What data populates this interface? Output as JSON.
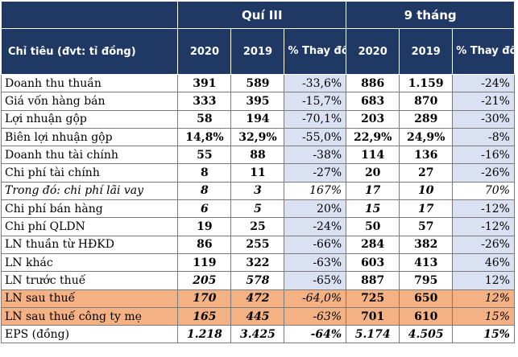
{
  "header": {
    "group_q3": "Quí III",
    "group_9m": "9 tháng",
    "label_col": "Chỉ tiêu (đvt: tỉ đồng)",
    "q3_2020": "2020",
    "q3_2019": "2019",
    "q3_change": "% Thay đổi",
    "m9_2020": "2020",
    "m9_2019": "2019",
    "m9_change": "% Thay đổi"
  },
  "rows": [
    {
      "label": "Doanh thu thuần",
      "q3_2020": "391",
      "q3_2019": "589",
      "q3_change": "-33,6%",
      "m9_2020": "886",
      "m9_2019": "1.159",
      "m9_change": "-24%"
    },
    {
      "label": "Giá vốn hàng bán",
      "q3_2020": "333",
      "q3_2019": "395",
      "q3_change": "-15,7%",
      "m9_2020": "683",
      "m9_2019": "870",
      "m9_change": "-21%"
    },
    {
      "label": "Lợi nhuận gộp",
      "q3_2020": "58",
      "q3_2019": "194",
      "q3_change": "-70,1%",
      "m9_2020": "203",
      "m9_2019": "289",
      "m9_change": "-30%"
    },
    {
      "label": "Biên lợi nhuận gộp",
      "q3_2020": "14,8%",
      "q3_2019": "32,9%",
      "q3_change": "-55,0%",
      "m9_2020": "22,9%",
      "m9_2019": "24,9%",
      "m9_change": "-8%"
    },
    {
      "label": "Doanh thu tài chính",
      "q3_2020": "55",
      "q3_2019": "88",
      "q3_change": "-38%",
      "m9_2020": "114",
      "m9_2019": "136",
      "m9_change": "-16%"
    },
    {
      "label": "Chi phí tài chính",
      "q3_2020": "8",
      "q3_2019": "11",
      "q3_change": "-27%",
      "m9_2020": "20",
      "m9_2019": "27",
      "m9_change": "-26%"
    },
    {
      "label": "Trong đó: chi phí lãi vay",
      "q3_2020": "8",
      "q3_2019": "3",
      "q3_change": "167%",
      "m9_2020": "17",
      "m9_2019": "10",
      "m9_change": "70%"
    },
    {
      "label": "Chi phí bán hàng",
      "q3_2020": "6",
      "q3_2019": "5",
      "q3_change": "20%",
      "m9_2020": "15",
      "m9_2019": "17",
      "m9_change": "-12%"
    },
    {
      "label": "Chi phí QLDN",
      "q3_2020": "19",
      "q3_2019": "25",
      "q3_change": "-24%",
      "m9_2020": "50",
      "m9_2019": "57",
      "m9_change": "-12%"
    },
    {
      "label": "LN thuần từ HĐKD",
      "q3_2020": "86",
      "q3_2019": "255",
      "q3_change": "-66%",
      "m9_2020": "284",
      "m9_2019": "382",
      "m9_change": "-26%"
    },
    {
      "label": "LN khác",
      "q3_2020": "119",
      "q3_2019": "322",
      "q3_change": "-63%",
      "m9_2020": "603",
      "m9_2019": "413",
      "m9_change": "46%"
    },
    {
      "label": "LN trước thuế",
      "q3_2020": "205",
      "q3_2019": "578",
      "q3_change": "-65%",
      "m9_2020": "887",
      "m9_2019": "795",
      "m9_change": "12%"
    },
    {
      "label": "LN sau thuế",
      "q3_2020": "170",
      "q3_2019": "472",
      "q3_change": "-64,0%",
      "m9_2020": "725",
      "m9_2019": "650",
      "m9_change": "12%"
    },
    {
      "label": "LN sau thuế công ty mẹ",
      "q3_2020": "165",
      "q3_2019": "445",
      "q3_change": "-63%",
      "m9_2020": "701",
      "m9_2019": "610",
      "m9_change": "15%"
    },
    {
      "label": "EPS (đồng)",
      "q3_2020": "1.218",
      "q3_2019": "3.425",
      "q3_change": "-64%",
      "m9_2020": "5.174",
      "m9_2019": "4.505",
      "m9_change": "15%"
    }
  ],
  "colors": {
    "header_bg": "#1f3864",
    "change_shade": "#d9e1f2",
    "highlight_row": "#f4b183"
  }
}
